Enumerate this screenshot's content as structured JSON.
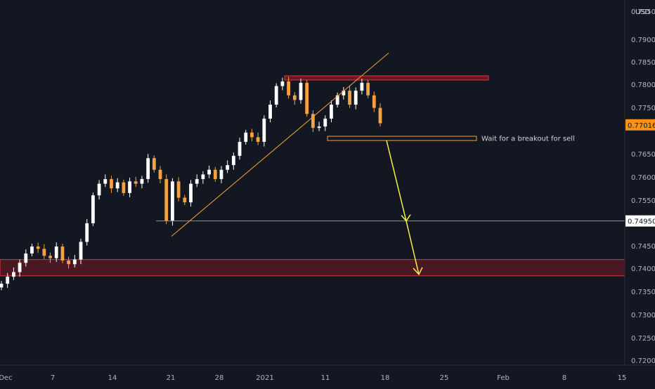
{
  "colors": {
    "background": "#131722",
    "axis_text": "#b2b5be",
    "candle_up": "#ffffff",
    "candle_down": "#f5a041",
    "trendline": "#f7a234",
    "resistance_zone": "#8b1a24",
    "resistance_border": "#e0343f",
    "breakout_box_border": "#f7a234",
    "arrow": "#f5f04a",
    "hline": "#8a8e99",
    "price_tag_bg": "#f7931a"
  },
  "chart_data": {
    "type": "candlestick",
    "symbol_currency": "USD",
    "x_tick_labels": [
      "Dec",
      "7",
      "14",
      "21",
      "28",
      "2021",
      "11",
      "18",
      "25",
      "Feb",
      "8",
      "15"
    ],
    "y_tick_labels": [
      "0.79500",
      "0.79000",
      "0.78500",
      "0.78000",
      "0.77500",
      "0.76500",
      "0.76000",
      "0.75500",
      "0.74500",
      "0.74000",
      "0.73500",
      "0.73000",
      "0.72500",
      "0.72000"
    ],
    "y_range": [
      0.7185,
      0.797
    ],
    "current_price_label": "0.77016",
    "current_price": 0.77016,
    "hline_label": "0.74950",
    "hline_price": 0.7495,
    "close_path": [
      0.736,
      0.7375,
      0.7385,
      0.7405,
      0.7425,
      0.744,
      0.7435,
      0.742,
      0.7415,
      0.744,
      0.741,
      0.7402,
      0.7412,
      0.745,
      0.749,
      0.755,
      0.7575,
      0.7585,
      0.7565,
      0.7578,
      0.7555,
      0.758,
      0.7575,
      0.7585,
      0.763,
      0.7605,
      0.7585,
      0.7495,
      0.758,
      0.7545,
      0.7535,
      0.7575,
      0.7585,
      0.7595,
      0.7605,
      0.7585,
      0.7605,
      0.7615,
      0.7635,
      0.7665,
      0.7685,
      0.7675,
      0.7665,
      0.7715,
      0.7745,
      0.7785,
      0.7795,
      0.7765,
      0.7755,
      0.7792,
      0.7725,
      0.7695,
      0.7698,
      0.7715,
      0.7745,
      0.7765,
      0.7775,
      0.7745,
      0.7775,
      0.7792,
      0.7765,
      0.7738,
      0.7705
    ],
    "annotations": [
      {
        "type": "zone",
        "name": "resistance",
        "price_low": 0.7798,
        "price_high": 0.7807
      },
      {
        "type": "zone",
        "name": "target",
        "price_low": 0.7377,
        "price_high": 0.7412
      },
      {
        "type": "box",
        "name": "breakout",
        "price_low": 0.7669,
        "price_high": 0.7677,
        "label": "Wait for a breakout for sell"
      },
      {
        "type": "trendline",
        "from_price": 0.7462,
        "to_price": 0.7856
      },
      {
        "type": "arrow",
        "from_price": 0.7668,
        "via_price": 0.7495,
        "to_price": 0.738
      }
    ]
  }
}
